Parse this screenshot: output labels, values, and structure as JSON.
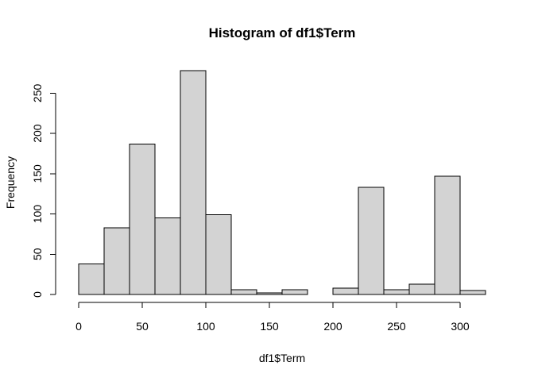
{
  "chart_data": {
    "type": "bar",
    "title": "Histogram of df1$Term",
    "xlabel": "df1$Term",
    "ylabel": "Frequency",
    "bin_edges": [
      0,
      20,
      40,
      60,
      80,
      100,
      120,
      140,
      160,
      180,
      200,
      220,
      240,
      260,
      280,
      300,
      320
    ],
    "values": [
      38,
      83,
      187,
      95,
      278,
      99,
      6,
      2,
      6,
      0,
      8,
      133,
      6,
      13,
      147,
      5
    ],
    "xlim": [
      0,
      320
    ],
    "ylim": [
      0,
      278
    ],
    "x_ticks": [
      0,
      50,
      100,
      150,
      200,
      250,
      300
    ],
    "y_ticks": [
      0,
      50,
      100,
      150,
      200,
      250
    ],
    "grid": false,
    "legend": "none",
    "colors": {
      "bar_fill": "#d3d3d3",
      "bar_stroke": "#000000",
      "axis": "#000000"
    }
  }
}
